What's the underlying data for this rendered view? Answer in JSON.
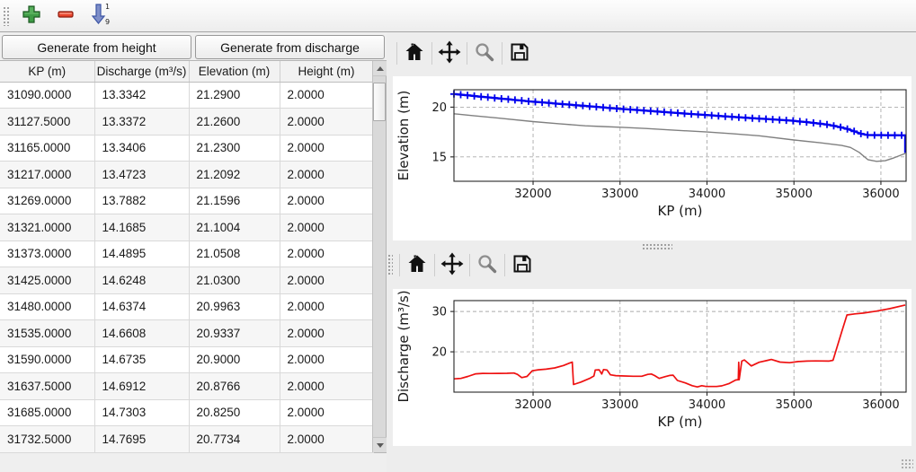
{
  "toolbar": {
    "add_icon": "plus-icon",
    "remove_icon": "minus-icon",
    "sort_icon": "sort-ascending-1-9-icon"
  },
  "buttons": {
    "generate_height": "Generate from height",
    "generate_discharge": "Generate from discharge"
  },
  "table": {
    "columns": [
      "KP (m)",
      "Discharge (m³/s)",
      "Elevation (m)",
      "Height (m)"
    ],
    "rows": [
      [
        "31090.0000",
        "13.3342",
        "21.2900",
        "2.0000"
      ],
      [
        "31127.5000",
        "13.3372",
        "21.2600",
        "2.0000"
      ],
      [
        "31165.0000",
        "13.3406",
        "21.2300",
        "2.0000"
      ],
      [
        "31217.0000",
        "13.4723",
        "21.2092",
        "2.0000"
      ],
      [
        "31269.0000",
        "13.7882",
        "21.1596",
        "2.0000"
      ],
      [
        "31321.0000",
        "14.1685",
        "21.1004",
        "2.0000"
      ],
      [
        "31373.0000",
        "14.4895",
        "21.0508",
        "2.0000"
      ],
      [
        "31425.0000",
        "14.6248",
        "21.0300",
        "2.0000"
      ],
      [
        "31480.0000",
        "14.6374",
        "20.9963",
        "2.0000"
      ],
      [
        "31535.0000",
        "14.6608",
        "20.9337",
        "2.0000"
      ],
      [
        "31590.0000",
        "14.6735",
        "20.9000",
        "2.0000"
      ],
      [
        "31637.5000",
        "14.6912",
        "20.8766",
        "2.0000"
      ],
      [
        "31685.0000",
        "14.7303",
        "20.8250",
        "2.0000"
      ],
      [
        "31732.5000",
        "14.7695",
        "20.7734",
        "2.0000"
      ]
    ]
  },
  "chart_toolbar_icons": [
    "home-icon",
    "pan-icon",
    "zoom-icon",
    "save-icon"
  ],
  "colors": {
    "elevation_line": "#0000ee",
    "bed_line": "#808080",
    "discharge_line": "#ee1111",
    "grid": "#ababab"
  },
  "chart_data": [
    {
      "type": "line",
      "xlabel": "KP (m)",
      "ylabel": "Elevation (m)",
      "xlim": [
        31090,
        36290
      ],
      "ylim": [
        12.55,
        21.75
      ],
      "xticks": [
        32000,
        33000,
        34000,
        35000,
        36000
      ],
      "yticks": [
        15,
        20
      ],
      "grid": true,
      "legend": "none",
      "series": [
        {
          "name": "water-surface-elevation",
          "color": "#0000ee",
          "marker": "+",
          "width": 2.4,
          "x": [
            31090,
            31168,
            31246,
            31324,
            31402,
            31480,
            31558,
            31636,
            31714,
            31792,
            31870,
            31948,
            32026,
            32104,
            32182,
            32260,
            32338,
            32416,
            32494,
            32572,
            32650,
            32728,
            32806,
            32884,
            32962,
            33040,
            33118,
            33196,
            33274,
            33352,
            33430,
            33508,
            33586,
            33664,
            33742,
            33820,
            33898,
            33976,
            34054,
            34132,
            34210,
            34288,
            34366,
            34444,
            34522,
            34600,
            34678,
            34756,
            34834,
            34912,
            34990,
            35068,
            35146,
            35224,
            35302,
            35380,
            35458,
            35536,
            35614,
            35692,
            35770,
            35848,
            35926,
            36004,
            36082,
            36160,
            36238,
            36280,
            36280
          ],
          "y": [
            21.32,
            21.25,
            21.19,
            21.12,
            21.05,
            20.99,
            20.92,
            20.85,
            20.79,
            20.72,
            20.66,
            20.59,
            20.53,
            20.48,
            20.42,
            20.36,
            20.31,
            20.25,
            20.19,
            20.14,
            20.08,
            20.03,
            19.97,
            19.91,
            19.86,
            19.8,
            19.76,
            19.71,
            19.66,
            19.61,
            19.56,
            19.51,
            19.46,
            19.41,
            19.36,
            19.31,
            19.26,
            19.22,
            19.17,
            19.12,
            19.07,
            19.03,
            18.98,
            18.94,
            18.89,
            18.85,
            18.81,
            18.76,
            18.72,
            18.67,
            18.63,
            18.56,
            18.49,
            18.42,
            18.34,
            18.25,
            18.12,
            17.98,
            17.81,
            17.57,
            17.33,
            17.2,
            17.19,
            17.19,
            17.18,
            17.18,
            17.17,
            17.17,
            15.4
          ]
        },
        {
          "name": "bed-elevation",
          "color": "#808080",
          "marker": null,
          "width": 1.4,
          "x": [
            31090,
            31300,
            31600,
            32000,
            32300,
            32600,
            32800,
            33000,
            33300,
            33600,
            34000,
            34300,
            34600,
            35000,
            35300,
            35550,
            35650,
            35750,
            35850,
            35950,
            36050,
            36150,
            36280
          ],
          "y": [
            19.33,
            19.15,
            18.9,
            18.55,
            18.33,
            18.12,
            18.05,
            17.98,
            17.85,
            17.7,
            17.5,
            17.32,
            17.12,
            16.7,
            16.42,
            16.15,
            15.95,
            15.45,
            14.72,
            14.55,
            14.62,
            14.9,
            15.35
          ]
        }
      ]
    },
    {
      "type": "line",
      "xlabel": "KP (m)",
      "ylabel": "Discharge (m³/s)",
      "xlim": [
        31090,
        36290
      ],
      "ylim": [
        10,
        32.7
      ],
      "xticks": [
        32000,
        33000,
        34000,
        35000,
        36000
      ],
      "yticks": [
        20,
        30
      ],
      "grid": true,
      "legend": "none",
      "series": [
        {
          "name": "discharge",
          "color": "#ee1111",
          "marker": null,
          "width": 1.7,
          "x": [
            31090,
            31170,
            31250,
            31340,
            31420,
            31500,
            31600,
            31700,
            31780,
            31820,
            31870,
            31930,
            31990,
            32060,
            32150,
            32250,
            32350,
            32420,
            32450,
            32465,
            32550,
            32650,
            32700,
            32715,
            32760,
            32790,
            32810,
            32850,
            32890,
            32950,
            33050,
            33150,
            33250,
            33320,
            33360,
            33400,
            33450,
            33520,
            33570,
            33610,
            33660,
            33750,
            33830,
            33890,
            33940,
            33990,
            34050,
            34110,
            34170,
            34250,
            34330,
            34360,
            34365,
            34370,
            34400,
            34430,
            34510,
            34600,
            34700,
            34740,
            34840,
            34950,
            35050,
            35150,
            35250,
            35400,
            35450,
            35550,
            35610,
            35700,
            35800,
            35950,
            36100,
            36280
          ],
          "y": [
            13.3,
            13.4,
            13.9,
            14.55,
            14.65,
            14.62,
            14.65,
            14.68,
            14.75,
            14.4,
            13.6,
            13.9,
            15.3,
            15.55,
            15.7,
            16.0,
            16.6,
            17.2,
            17.45,
            11.9,
            12.5,
            13.4,
            14.0,
            15.5,
            15.55,
            14.5,
            15.6,
            15.5,
            14.3,
            14.1,
            14.0,
            13.95,
            13.95,
            14.4,
            14.5,
            14.1,
            13.4,
            13.85,
            14.15,
            14.2,
            12.9,
            12.3,
            11.6,
            11.3,
            11.6,
            11.4,
            11.4,
            11.4,
            11.55,
            12.1,
            13.0,
            13.1,
            17.4,
            13.1,
            17.7,
            18.0,
            16.5,
            17.4,
            17.9,
            18.1,
            17.45,
            17.3,
            17.6,
            17.7,
            17.75,
            17.7,
            17.9,
            25.0,
            29.15,
            29.4,
            29.6,
            30.1,
            30.7,
            31.6
          ]
        }
      ]
    }
  ]
}
